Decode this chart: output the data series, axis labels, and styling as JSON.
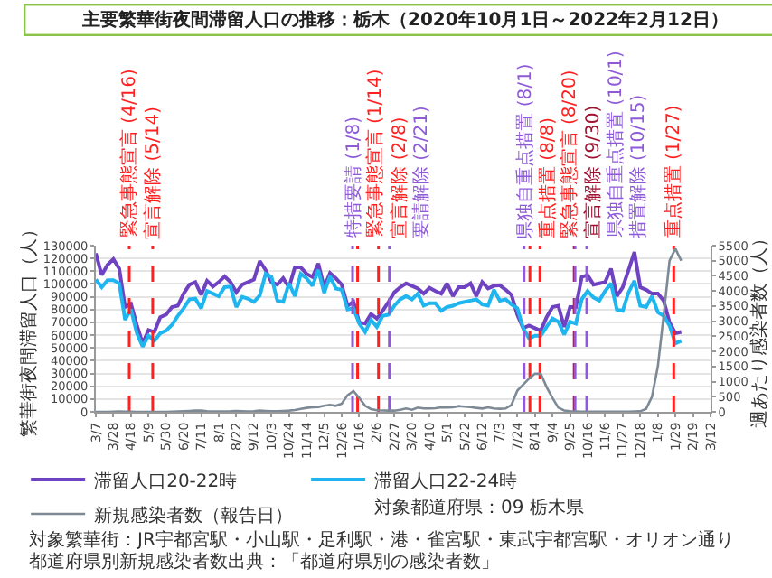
{
  "chart_data": {
    "type": "line",
    "title": "主要繁華街夜間滞留人口の推移：栃木（2020年10月1日～2022年2月12日）",
    "ylabel": "繁華街夜間滞留人口（人）",
    "y2label": "週あたり感染者数（人）",
    "x": [
      "2020-03-07",
      "2020-03-14",
      "2020-03-21",
      "2020-03-28",
      "2020-04-04",
      "2020-04-11",
      "2020-04-18",
      "2020-04-25",
      "2020-05-02",
      "2020-05-09",
      "2020-05-16",
      "2020-05-23",
      "2020-05-30",
      "2020-06-06",
      "2020-06-13",
      "2020-06-20",
      "2020-06-27",
      "2020-07-04",
      "2020-07-11",
      "2020-07-18",
      "2020-07-25",
      "2020-08-01",
      "2020-08-08",
      "2020-08-15",
      "2020-08-22",
      "2020-08-29",
      "2020-09-05",
      "2020-09-12",
      "2020-09-19",
      "2020-09-26",
      "2020-10-03",
      "2020-10-10",
      "2020-10-17",
      "2020-10-24",
      "2020-10-31",
      "2020-11-07",
      "2020-11-14",
      "2020-11-21",
      "2020-11-28",
      "2020-12-05",
      "2020-12-12",
      "2020-12-19",
      "2020-12-26",
      "2021-01-02",
      "2021-01-09",
      "2021-01-16",
      "2021-01-23",
      "2021-01-30",
      "2021-02-06",
      "2021-02-13",
      "2021-02-20",
      "2021-02-27",
      "2021-03-06",
      "2021-03-13",
      "2021-03-20",
      "2021-03-27",
      "2021-04-03",
      "2021-04-10",
      "2021-04-17",
      "2021-04-24",
      "2021-05-01",
      "2021-05-08",
      "2021-05-15",
      "2021-05-22",
      "2021-05-29",
      "2021-06-05",
      "2021-06-12",
      "2021-06-19",
      "2021-06-26",
      "2021-07-03",
      "2021-07-10",
      "2021-07-17",
      "2021-07-24",
      "2021-07-31",
      "2021-08-07",
      "2021-08-14",
      "2021-08-21",
      "2021-08-28",
      "2021-09-04",
      "2021-09-11",
      "2021-09-18",
      "2021-09-25",
      "2021-10-02",
      "2021-10-09",
      "2021-10-16",
      "2021-10-23",
      "2021-10-30",
      "2021-11-06",
      "2021-11-13",
      "2021-11-20",
      "2021-11-27",
      "2021-12-04",
      "2021-12-11",
      "2021-12-18",
      "2021-12-25",
      "2022-01-01",
      "2022-01-08",
      "2022-01-15",
      "2022-01-22",
      "2022-01-29",
      "2022-02-05"
    ],
    "series": [
      {
        "name": "滞留人口20-22時",
        "color": "#6f42c1",
        "values": [
          124000,
          107000,
          115000,
          119500,
          112000,
          82000,
          84500,
          68000,
          53500,
          64000,
          62500,
          74000,
          76000,
          82000,
          83000,
          92500,
          99500,
          101500,
          91500,
          102500,
          98000,
          101500,
          106000,
          101500,
          93500,
          99500,
          101500,
          103500,
          118000,
          111000,
          101500,
          99500,
          104500,
          97500,
          113000,
          113000,
          108000,
          105500,
          116000,
          97500,
          108500,
          104500,
          99500,
          83000,
          86000,
          70000,
          69000,
          76500,
          73000,
          79000,
          86000,
          93500,
          97500,
          100500,
          98500,
          96500,
          92500,
          97000,
          94500,
          92500,
          100500,
          90500,
          97500,
          97500,
          100500,
          90500,
          101500,
          96500,
          98500,
          99000,
          95500,
          91500,
          76000,
          65500,
          67500,
          65500,
          63500,
          74000,
          82000,
          83000,
          66500,
          82000,
          82000,
          105500,
          107000,
          99500,
          100500,
          101500,
          112000,
          90500,
          97500,
          111000,
          125000,
          97500,
          95500,
          92500,
          92500,
          87000,
          70000,
          61500,
          62500
        ]
      },
      {
        "name": "滞留人口22-24時",
        "color": "#1fb5ef",
        "values": [
          103500,
          97500,
          103000,
          103000,
          100500,
          72000,
          80000,
          61500,
          51000,
          59500,
          55500,
          61500,
          63500,
          68000,
          75000,
          81000,
          88000,
          88500,
          81000,
          94500,
          92500,
          90500,
          97500,
          98000,
          82000,
          90000,
          88500,
          86000,
          91000,
          108000,
          105500,
          87000,
          86000,
          100500,
          90500,
          108000,
          104500,
          98500,
          111000,
          93000,
          106000,
          96500,
          95500,
          80000,
          81000,
          69000,
          62500,
          72000,
          66500,
          75000,
          76000,
          83000,
          88000,
          90500,
          88000,
          92500,
          83000,
          85000,
          85000,
          79000,
          82000,
          83000,
          85000,
          86000,
          87000,
          88000,
          84000,
          83000,
          95500,
          87000,
          88000,
          84000,
          81000,
          65500,
          57500,
          59500,
          59500,
          66500,
          73000,
          70500,
          60500,
          70500,
          69000,
          88000,
          94500,
          89500,
          87000,
          94500,
          100500,
          80000,
          79000,
          93500,
          102500,
          83000,
          82000,
          90500,
          78000,
          75000,
          67500,
          53500,
          55500
        ]
      },
      {
        "name": "新規感染者数（報告日）",
        "color": "#7d8a96",
        "axis": "y2",
        "values": [
          0,
          0,
          2,
          5,
          10,
          5,
          3,
          0,
          0,
          0,
          0,
          0,
          0,
          3,
          10,
          20,
          30,
          40,
          40,
          20,
          10,
          10,
          15,
          20,
          30,
          20,
          10,
          20,
          40,
          30,
          20,
          20,
          30,
          40,
          60,
          100,
          130,
          150,
          160,
          200,
          230,
          200,
          270,
          550,
          690,
          460,
          200,
          90,
          50,
          45,
          40,
          40,
          70,
          110,
          70,
          140,
          110,
          110,
          120,
          150,
          140,
          150,
          190,
          170,
          160,
          130,
          110,
          150,
          110,
          100,
          110,
          230,
          700,
          900,
          1100,
          1260,
          1260,
          820,
          460,
          140,
          45,
          20,
          10,
          5,
          5,
          5,
          5,
          5,
          5,
          5,
          5,
          5,
          10,
          20,
          100,
          500,
          1500,
          3200,
          5000,
          5400,
          5000
        ]
      }
    ],
    "xlim": [
      "2020-03-07",
      "2022-03-12"
    ],
    "xticks": [
      {
        "value": "2020-03-07",
        "label": "3/7"
      },
      {
        "value": "2020-03-28",
        "label": "3/28"
      },
      {
        "value": "2020-04-18",
        "label": "4/18"
      },
      {
        "value": "2020-05-09",
        "label": "5/9"
      },
      {
        "value": "2020-05-30",
        "label": "5/30"
      },
      {
        "value": "2020-06-20",
        "label": "6/20"
      },
      {
        "value": "2020-07-11",
        "label": "7/11"
      },
      {
        "value": "2020-08-01",
        "label": "8/1"
      },
      {
        "value": "2020-08-22",
        "label": "8/22"
      },
      {
        "value": "2020-09-12",
        "label": "9/12"
      },
      {
        "value": "2020-10-03",
        "label": "10/3"
      },
      {
        "value": "2020-10-24",
        "label": "10/24"
      },
      {
        "value": "2020-11-14",
        "label": "11/14"
      },
      {
        "value": "2020-12-05",
        "label": "12/5"
      },
      {
        "value": "2020-12-26",
        "label": "12/26"
      },
      {
        "value": "2021-01-16",
        "label": "1/16"
      },
      {
        "value": "2021-02-06",
        "label": "2/6"
      },
      {
        "value": "2021-02-27",
        "label": "2/27"
      },
      {
        "value": "2021-03-20",
        "label": "3/20"
      },
      {
        "value": "2021-04-10",
        "label": "4/10"
      },
      {
        "value": "2021-05-01",
        "label": "5/1"
      },
      {
        "value": "2021-05-22",
        "label": "5/22"
      },
      {
        "value": "2021-06-12",
        "label": "6/12"
      },
      {
        "value": "2021-07-03",
        "label": "7/3"
      },
      {
        "value": "2021-07-24",
        "label": "7/24"
      },
      {
        "value": "2021-08-14",
        "label": "8/14"
      },
      {
        "value": "2021-09-04",
        "label": "9/4"
      },
      {
        "value": "2021-09-25",
        "label": "9/25"
      },
      {
        "value": "2021-10-16",
        "label": "10/16"
      },
      {
        "value": "2021-11-06",
        "label": "11/6"
      },
      {
        "value": "2021-11-27",
        "label": "11/27"
      },
      {
        "value": "2021-12-18",
        "label": "12/18"
      },
      {
        "value": "2022-01-08",
        "label": "1/8"
      },
      {
        "value": "2022-01-29",
        "label": "1/29"
      },
      {
        "value": "2022-02-19",
        "label": "2/19"
      },
      {
        "value": "2022-03-12",
        "label": "3/12"
      }
    ],
    "ylim": [
      0,
      130000
    ],
    "yticks": [
      0,
      10000,
      20000,
      30000,
      40000,
      50000,
      60000,
      70000,
      80000,
      90000,
      100000,
      110000,
      120000,
      130000
    ],
    "y2lim": [
      0,
      5500
    ],
    "y2ticks": [
      0,
      500,
      1000,
      1500,
      2000,
      2500,
      3000,
      3500,
      4000,
      4500,
      5000,
      5500
    ],
    "ref_lines": [
      {
        "axis": "x",
        "value": "2020-04-16",
        "label": "緊急事態宣言 (4/16)",
        "color": "#ff2020",
        "line_style": "dashed"
      },
      {
        "axis": "x",
        "value": "2020-05-14",
        "label": "宣言解除 (5/14)",
        "color": "#ff2020",
        "line_style": "dashed"
      },
      {
        "axis": "x",
        "value": "2021-01-08",
        "label": "特措要請 (1/8)",
        "color": "#8e5ad8",
        "line_style": "dashed"
      },
      {
        "axis": "x",
        "value": "2021-01-14",
        "label": "緊急事態宣言 (1/14)",
        "color": "#ff2020",
        "line_style": "dashed"
      },
      {
        "axis": "x",
        "value": "2021-02-08",
        "label": "宣言解除 (2/8)",
        "color": "#ff2020",
        "line_style": "dashed"
      },
      {
        "axis": "x",
        "value": "2021-02-21",
        "label": "要請解除 (2/21)",
        "color": "#8e5ad8",
        "line_style": "dashed"
      },
      {
        "axis": "x",
        "value": "2021-08-01",
        "label": "県独自重点措置 (8/1)",
        "color": "#8e5ad8",
        "line_style": "dashed"
      },
      {
        "axis": "x",
        "value": "2021-08-08",
        "label": "重点措置 (8/8)",
        "color": "#ff2020",
        "line_style": "dashed"
      },
      {
        "axis": "x",
        "value": "2021-08-20",
        "label": "緊急事態宣言 (8/20)",
        "color": "#ff2020",
        "line_style": "dashed"
      },
      {
        "axis": "x",
        "value": "2021-09-30",
        "label": "宣言解除 (9/30)",
        "color": "#a01030",
        "line_style": "dashed"
      },
      {
        "axis": "x",
        "value": "2021-10-01",
        "label": "県独自重点措置 (10/1)",
        "color": "#8e5ad8",
        "line_style": "dashed"
      },
      {
        "axis": "x",
        "value": "2021-10-15",
        "label": "措置解除 (10/15)",
        "color": "#8e5ad8",
        "line_style": "dashed"
      },
      {
        "axis": "x",
        "value": "2022-01-27",
        "label": "重点措置 (1/27)",
        "color": "#ff2020",
        "line_style": "dashed"
      }
    ],
    "annotations": [
      "対象都道府県：09 栃木県",
      "対象繁華街：JR宇都宮駅・小山駅・足利駅・港・雀宮駅・東武宇都宮駅・オリオン通り",
      "都道府県別新規感染者数出典：「都道府県別の感染者数」"
    ],
    "grid": "y",
    "legend": "bottom",
    "line_style": "solid"
  }
}
